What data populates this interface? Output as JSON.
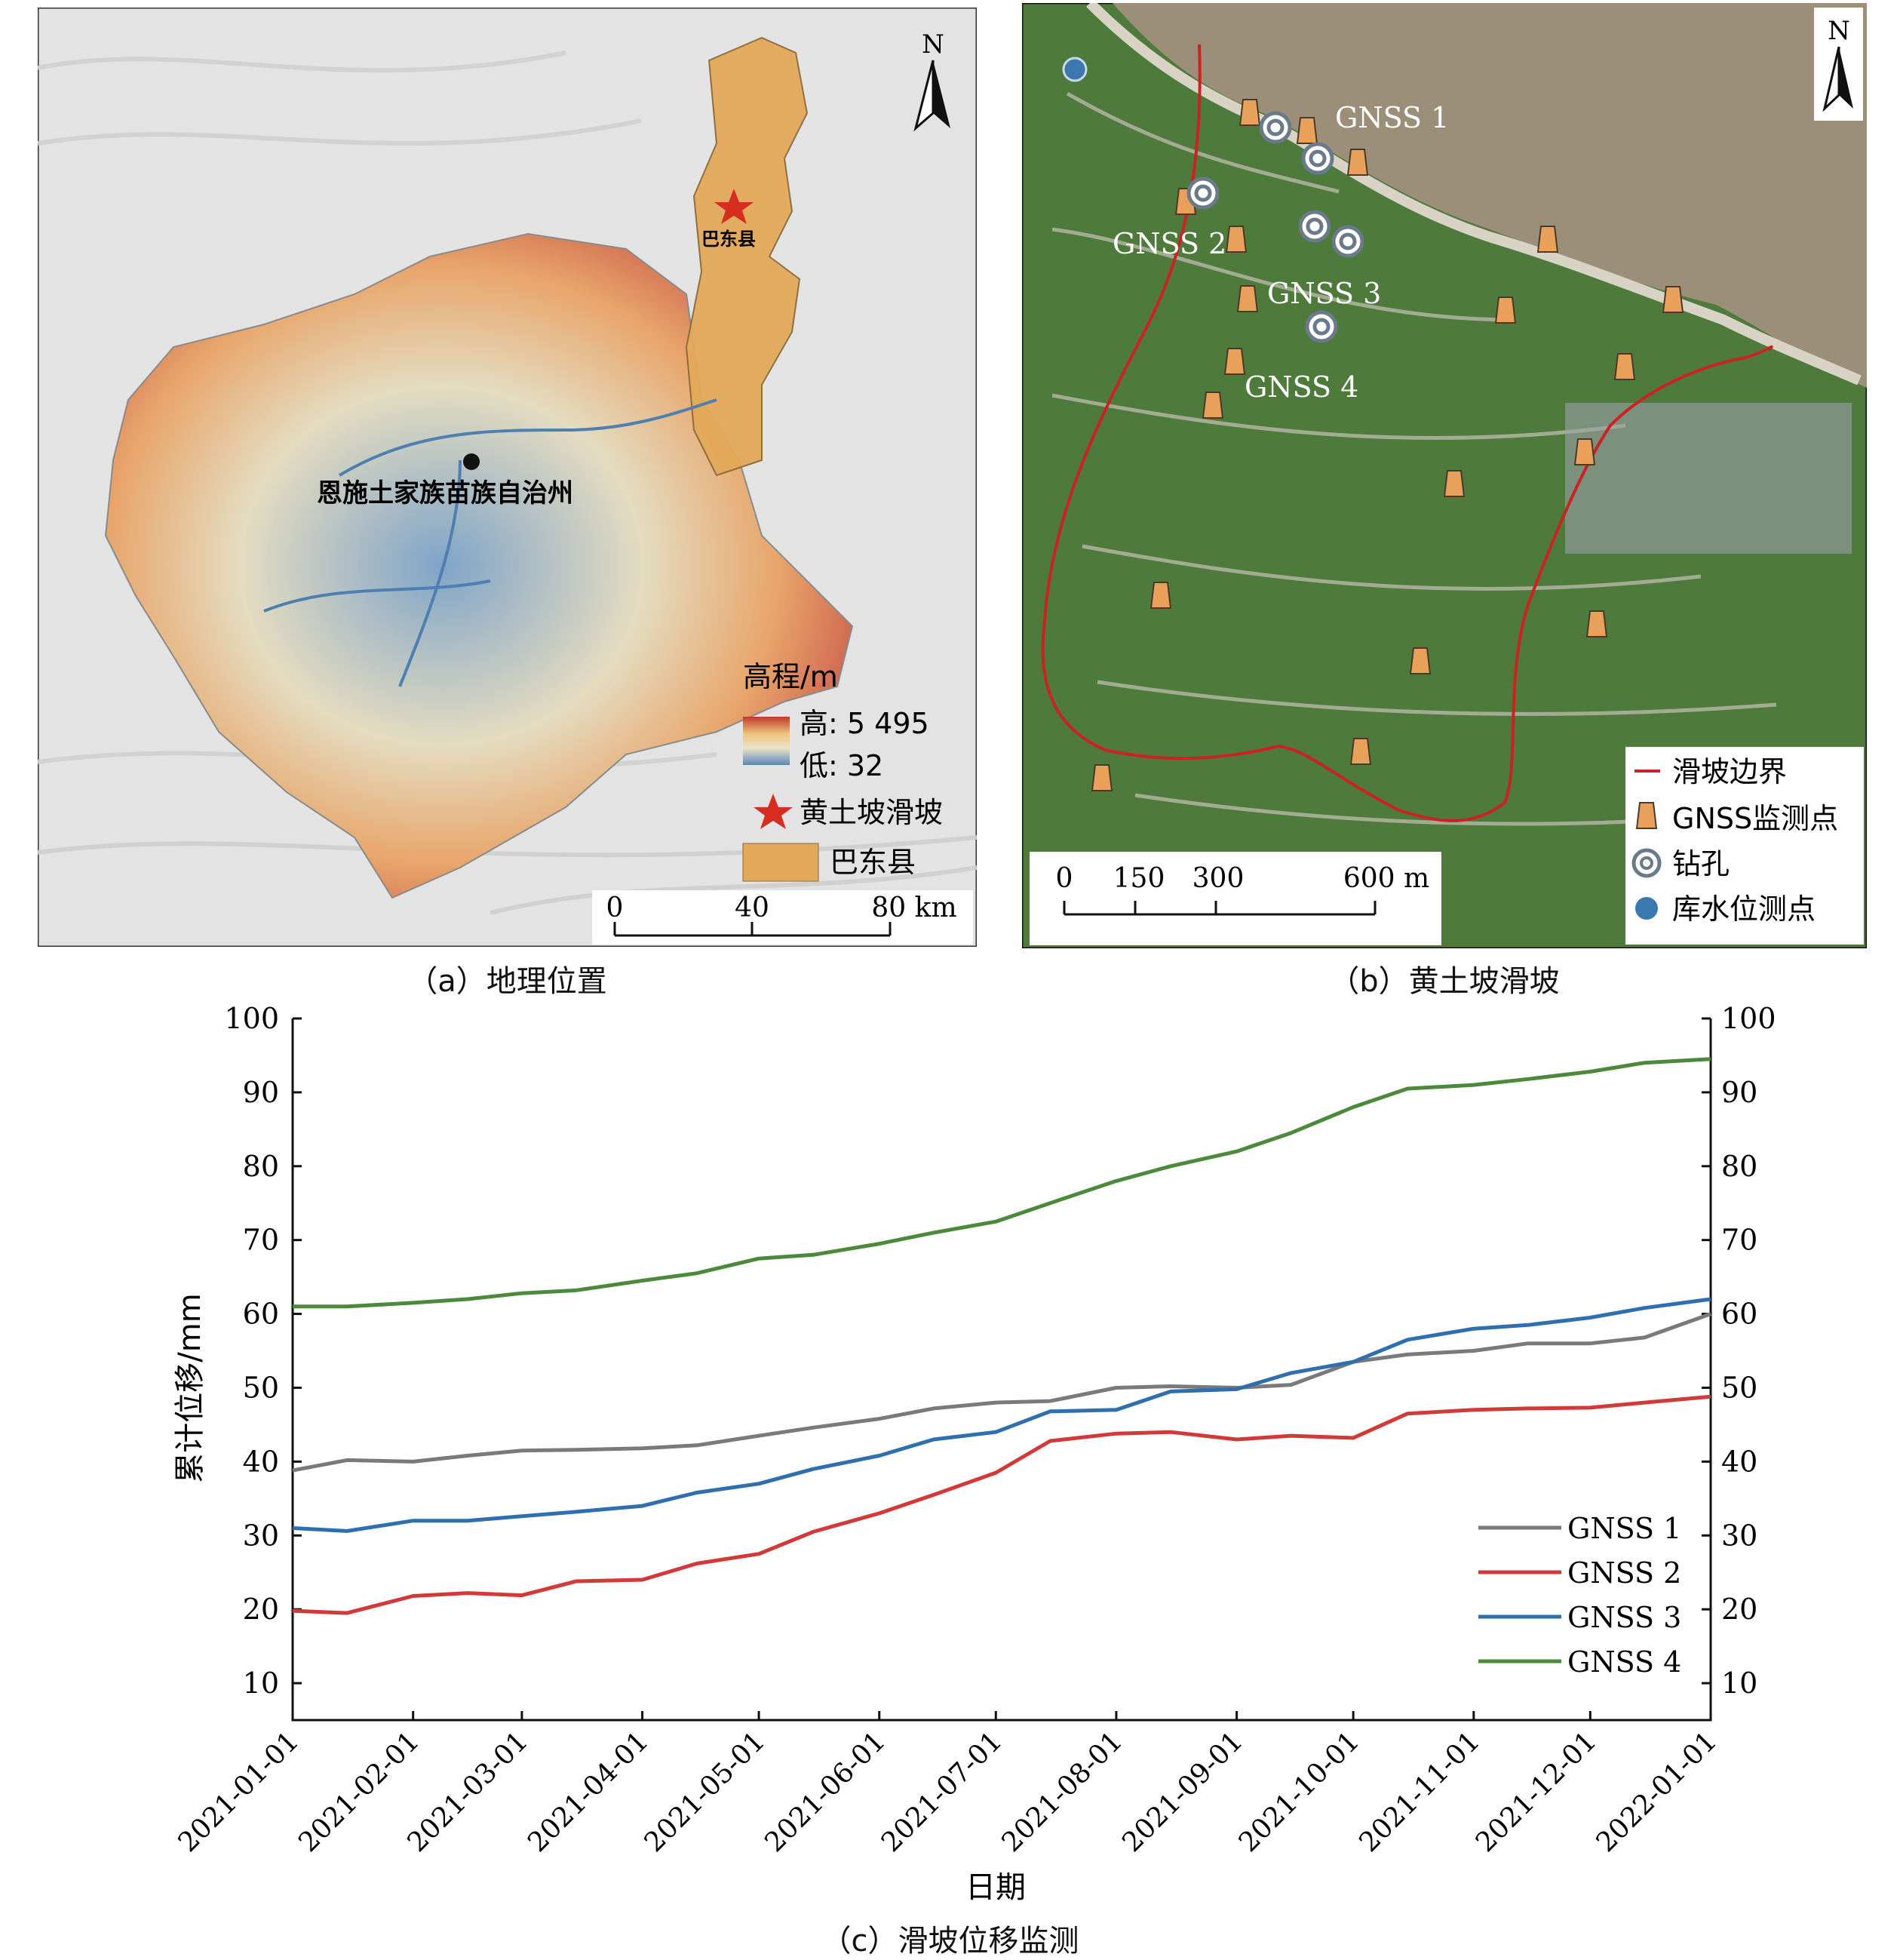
{
  "panel_a": {
    "caption": "（a）地理位置",
    "north_label": "N",
    "region_label": "恩施土家族苗族自治州",
    "county_label": "巴东县",
    "legend": {
      "title": "高程/m",
      "high": "高: 5 495",
      "low": "低: 32",
      "landslide": "黄土坡滑坡",
      "county": "巴东县"
    },
    "scale": {
      "t0": "0",
      "t1": "40",
      "t2": "80 km"
    },
    "colors": {
      "high": "#c0392b",
      "low": "#5b86b5",
      "county": "#e3a95a",
      "star": "#d62d20"
    }
  },
  "panel_b": {
    "caption": "（b）黄土坡滑坡",
    "north_label": "N",
    "gnss_labels": [
      "GNSS 1",
      "GNSS 2",
      "GNSS 3",
      "GNSS 4"
    ],
    "legend": {
      "boundary": "滑坡边界",
      "gnss": "GNSS监测点",
      "borehole": "钻孔",
      "water": "库水位测点"
    },
    "scale": {
      "t0": "0",
      "t1": "150",
      "t2": "300",
      "t3": "600 m"
    },
    "colors": {
      "boundary": "#cc2222",
      "gnss": "#e8a05a",
      "water": "#3b78b0"
    }
  },
  "panel_c": {
    "caption": "（c）滑坡位移监测"
  },
  "chart_data": {
    "type": "line",
    "xlabel": "日期",
    "ylabel": "累计位移/mm",
    "ylim": [
      5,
      100
    ],
    "yticks": [
      10,
      20,
      30,
      40,
      50,
      60,
      70,
      80,
      90,
      100
    ],
    "x_ticks": [
      "2021-01-01",
      "2021-02-01",
      "2021-03-01",
      "2021-04-01",
      "2021-05-01",
      "2021-06-01",
      "2021-07-01",
      "2021-08-01",
      "2021-09-01",
      "2021-10-01",
      "2021-11-01",
      "2021-12-01",
      "2022-01-01"
    ],
    "x": [
      "2021-01-01",
      "2021-01-15",
      "2021-02-01",
      "2021-02-15",
      "2021-03-01",
      "2021-03-15",
      "2021-04-01",
      "2021-04-15",
      "2021-05-01",
      "2021-05-15",
      "2021-06-01",
      "2021-06-15",
      "2021-07-01",
      "2021-07-15",
      "2021-08-01",
      "2021-08-15",
      "2021-09-01",
      "2021-09-15",
      "2021-10-01",
      "2021-10-15",
      "2021-11-01",
      "2021-11-15",
      "2021-12-01",
      "2021-12-15",
      "2022-01-01"
    ],
    "series": [
      {
        "name": "GNSS 1",
        "color": "#7a7a7a",
        "values": [
          38.8,
          40.2,
          40.0,
          40.8,
          41.5,
          41.6,
          41.8,
          42.2,
          43.5,
          44.6,
          45.8,
          47.2,
          48.0,
          48.2,
          50.0,
          50.2,
          50.0,
          50.4,
          53.5,
          54.5,
          55.0,
          56.0,
          56.0,
          56.8,
          60.0
        ]
      },
      {
        "name": "GNSS 2",
        "color": "#d23a3a",
        "values": [
          19.8,
          19.5,
          21.8,
          22.2,
          21.9,
          23.8,
          24.0,
          26.2,
          27.5,
          30.5,
          33.0,
          35.5,
          38.5,
          42.8,
          43.8,
          44.0,
          43.0,
          43.5,
          43.2,
          46.5,
          47.0,
          47.2,
          47.3,
          48.0,
          48.8
        ]
      },
      {
        "name": "GNSS 3",
        "color": "#2f6fb0",
        "values": [
          31.0,
          30.6,
          32.0,
          32.0,
          32.6,
          33.2,
          34.0,
          35.8,
          37.0,
          39.0,
          40.8,
          43.0,
          44.0,
          46.8,
          47.0,
          49.5,
          49.8,
          52.0,
          53.5,
          56.5,
          58.0,
          58.5,
          59.5,
          60.8,
          62.0
        ]
      },
      {
        "name": "GNSS 4",
        "color": "#4a8a3a",
        "values": [
          61.0,
          61.0,
          61.5,
          62.0,
          62.8,
          63.2,
          64.5,
          65.5,
          67.5,
          68.0,
          69.5,
          71.0,
          72.5,
          75.0,
          78.0,
          80.0,
          82.0,
          84.5,
          88.0,
          90.5,
          91.0,
          91.8,
          92.8,
          94.0,
          94.5
        ]
      }
    ],
    "legend_position": "bottom-right",
    "grid": false
  }
}
